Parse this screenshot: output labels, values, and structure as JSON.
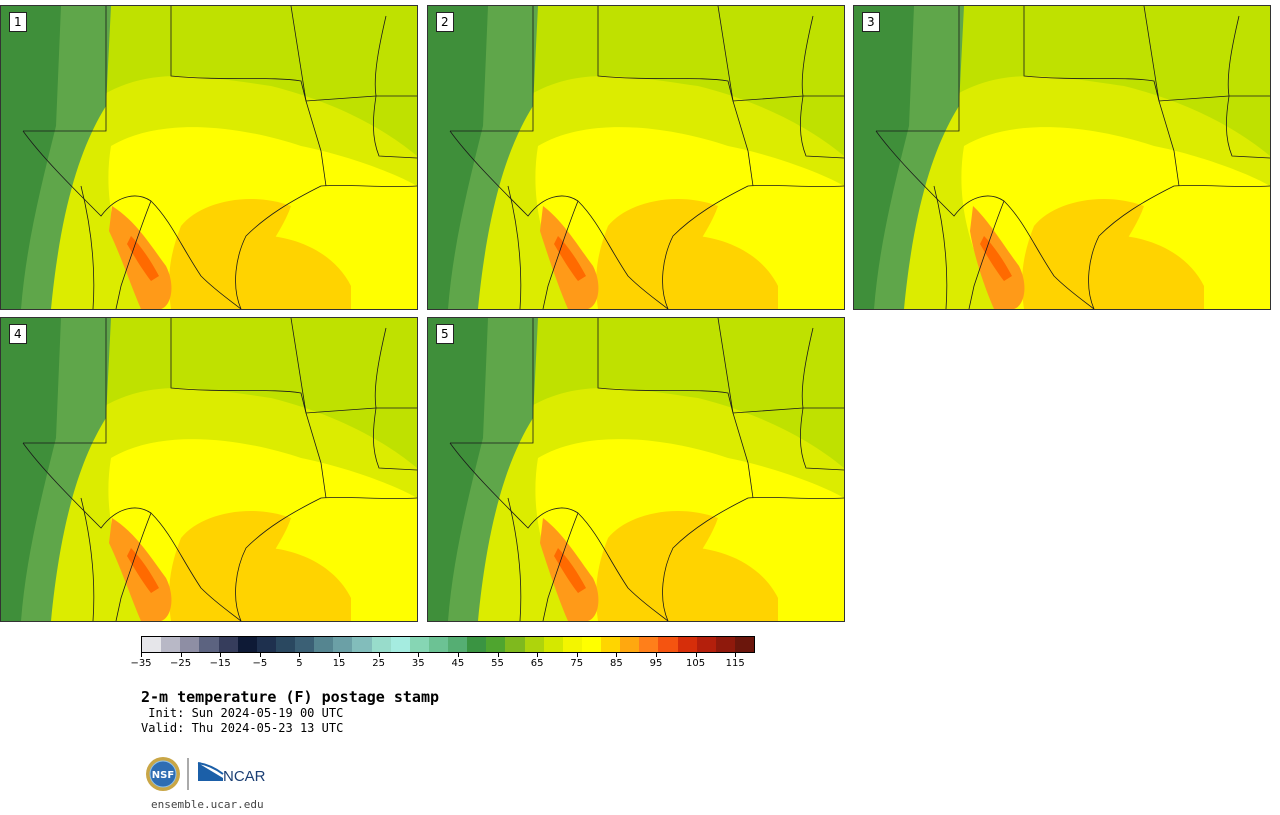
{
  "title": "2-m temperature (F) postage stamp",
  "init_text": " Init: Sun 2024-05-19 00 UTC",
  "valid_text": "Valid: Thu 2024-05-23 13 UTC",
  "site": "ensemble.ucar.edu",
  "logo": {
    "nsf": "NSF",
    "ncar": "NCAR"
  },
  "members": [
    {
      "label": "1"
    },
    {
      "label": "2"
    },
    {
      "label": "3"
    },
    {
      "label": "4"
    },
    {
      "label": "5"
    }
  ],
  "colorbar": {
    "min": -35,
    "max": 120,
    "step": 5,
    "tick_labels": [
      "−35",
      "−25",
      "−15",
      "−5",
      "5",
      "15",
      "25",
      "35",
      "45",
      "55",
      "65",
      "75",
      "85",
      "95",
      "105",
      "115"
    ],
    "colors": [
      "#e6e6ea",
      "#b8b8c6",
      "#8e8ea4",
      "#5c6380",
      "#363d5c",
      "#0e1a36",
      "#1e304e",
      "#2a4860",
      "#3b6075",
      "#558590",
      "#6ba0a6",
      "#82bdbb",
      "#98dccb",
      "#a5ece0",
      "#86d6b4",
      "#6cc294",
      "#55ae73",
      "#3a9442",
      "#4fa52f",
      "#7fb91e",
      "#aed40c",
      "#d4e800",
      "#f3f500",
      "#ffff00",
      "#ffd500",
      "#ffa80f",
      "#ff7f1a",
      "#f55410",
      "#d62e0a",
      "#b41f0c",
      "#8f190c",
      "#6b160c"
    ]
  },
  "map_colors": {
    "boundary": "#1a1a1a",
    "hot": "#ff9a18",
    "warm": "#ffd300",
    "mild": "#ffff00",
    "cool": "#bfe100",
    "cold": "#5fa64a"
  }
}
